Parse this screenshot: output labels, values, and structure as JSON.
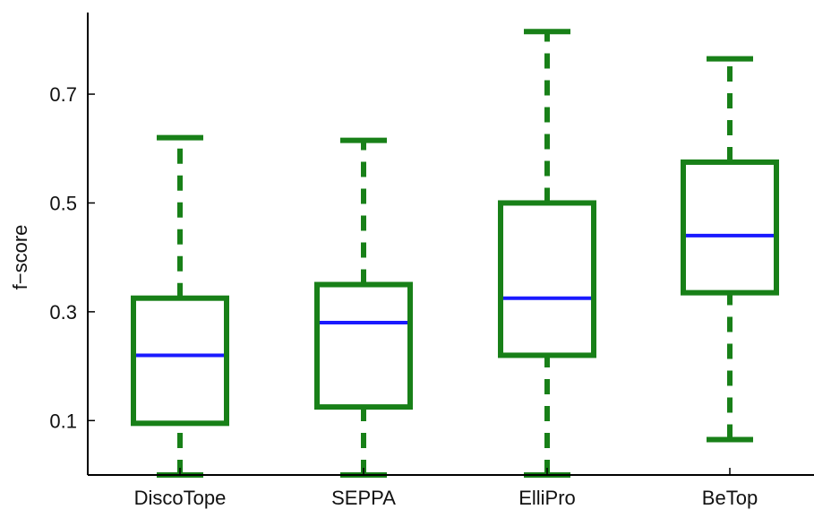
{
  "chart_data": {
    "type": "boxplot",
    "title": "",
    "xlabel": "",
    "ylabel": "f−score",
    "ylim": [
      0.0,
      0.85
    ],
    "yticks": [
      0.1,
      0.3,
      0.5,
      0.7
    ],
    "ytick_labels": [
      "0.1",
      "0.3",
      "0.5",
      "0.7"
    ],
    "categories": [
      "DiscoTope",
      "SEPPA",
      "ElliPro",
      "BeTop"
    ],
    "boxes": [
      {
        "label": "DiscoTope",
        "min": 0.0,
        "q1": 0.095,
        "median": 0.22,
        "q3": 0.325,
        "max": 0.62
      },
      {
        "label": "SEPPA",
        "min": 0.0,
        "q1": 0.125,
        "median": 0.28,
        "q3": 0.35,
        "max": 0.615
      },
      {
        "label": "ElliPro",
        "min": 0.0,
        "q1": 0.22,
        "median": 0.325,
        "q3": 0.5,
        "max": 0.815
      },
      {
        "label": "BeTop",
        "min": 0.065,
        "q1": 0.335,
        "median": 0.44,
        "q3": 0.575,
        "max": 0.765
      }
    ],
    "grid": false,
    "colors": {
      "box": "#188018",
      "whisker": "#188018",
      "median": "#1a1aff",
      "axis": "#000000"
    }
  }
}
